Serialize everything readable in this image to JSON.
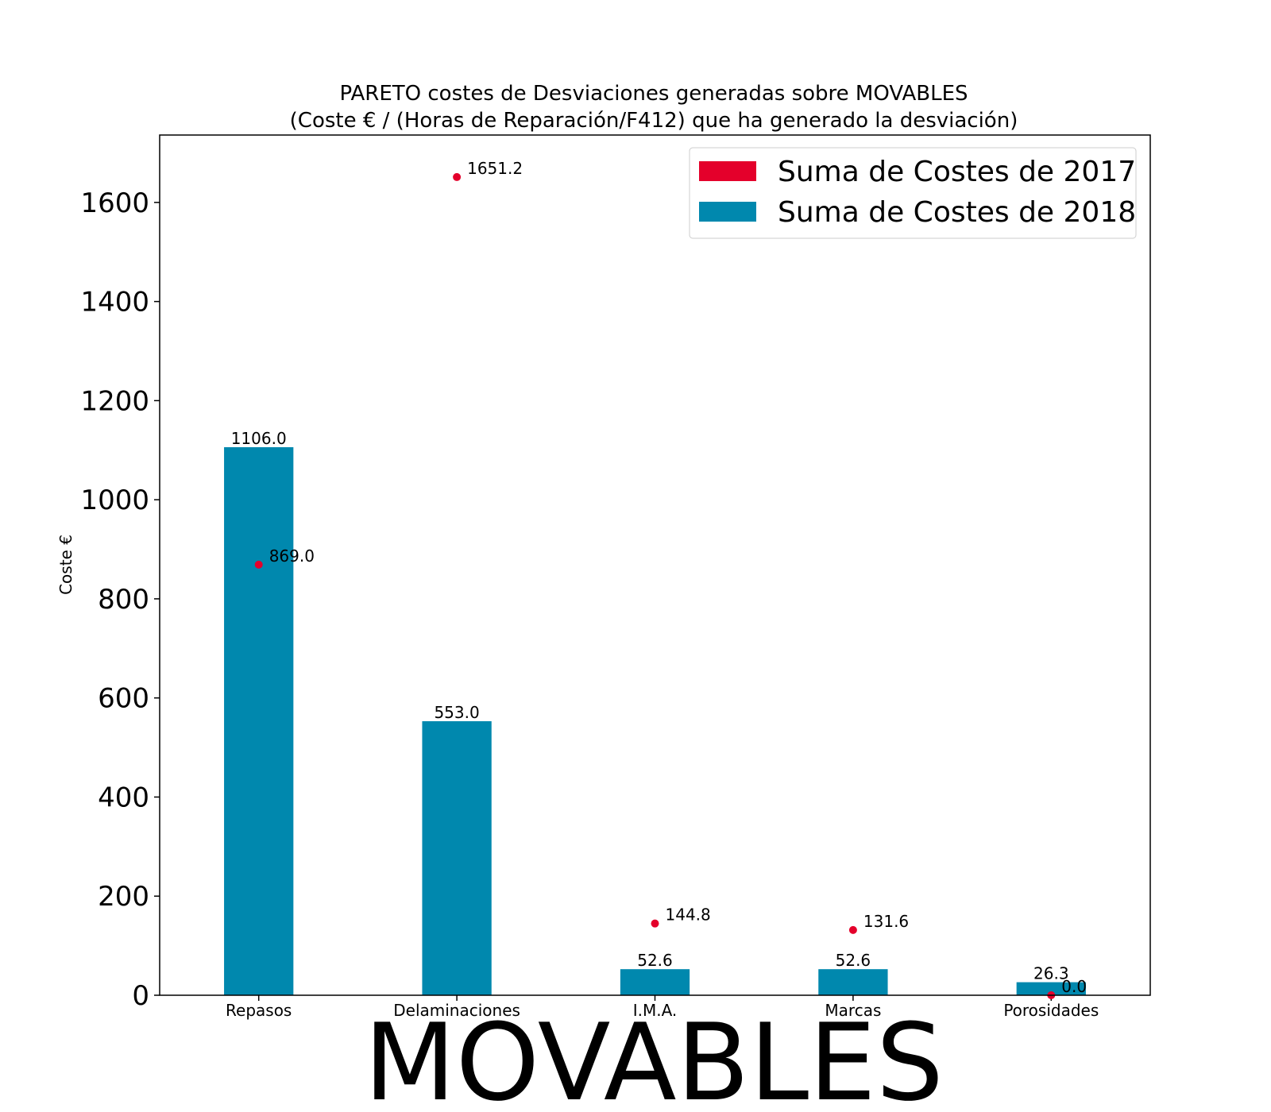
{
  "chart_data": {
    "type": "bar",
    "title_line1": "PARETO costes de Desviaciones  generadas  sobre MOVABLES",
    "title_line2": "(Coste € / (Horas de Reparación/F412) que ha generado la desviación)",
    "xlabel": "MOVABLES",
    "ylabel": "Coste €",
    "ylim": [
      0,
      1736
    ],
    "yticks": [
      0,
      200,
      400,
      600,
      800,
      1000,
      1200,
      1400,
      1600
    ],
    "categories": [
      "Repasos",
      "Delaminaciones",
      "I.M.A.",
      "Marcas",
      "Porosidades"
    ],
    "series": [
      {
        "name": "Suma de Costes de 2017",
        "mark": "point",
        "color": "#e4002b",
        "values": [
          869.0,
          1651.2,
          144.8,
          131.6,
          0.0
        ],
        "labels": [
          "869.0",
          "1651.2",
          "144.8",
          "131.6",
          "0.0"
        ]
      },
      {
        "name": "Suma de Costes de 2018",
        "mark": "bar",
        "color": "#0088ae",
        "values": [
          1106.0,
          553.0,
          52.6,
          52.6,
          26.3
        ],
        "labels": [
          "1106.0",
          "553.0",
          "52.6",
          "52.6",
          "26.3"
        ]
      }
    ],
    "legend_position": "top-right",
    "grid": false
  }
}
